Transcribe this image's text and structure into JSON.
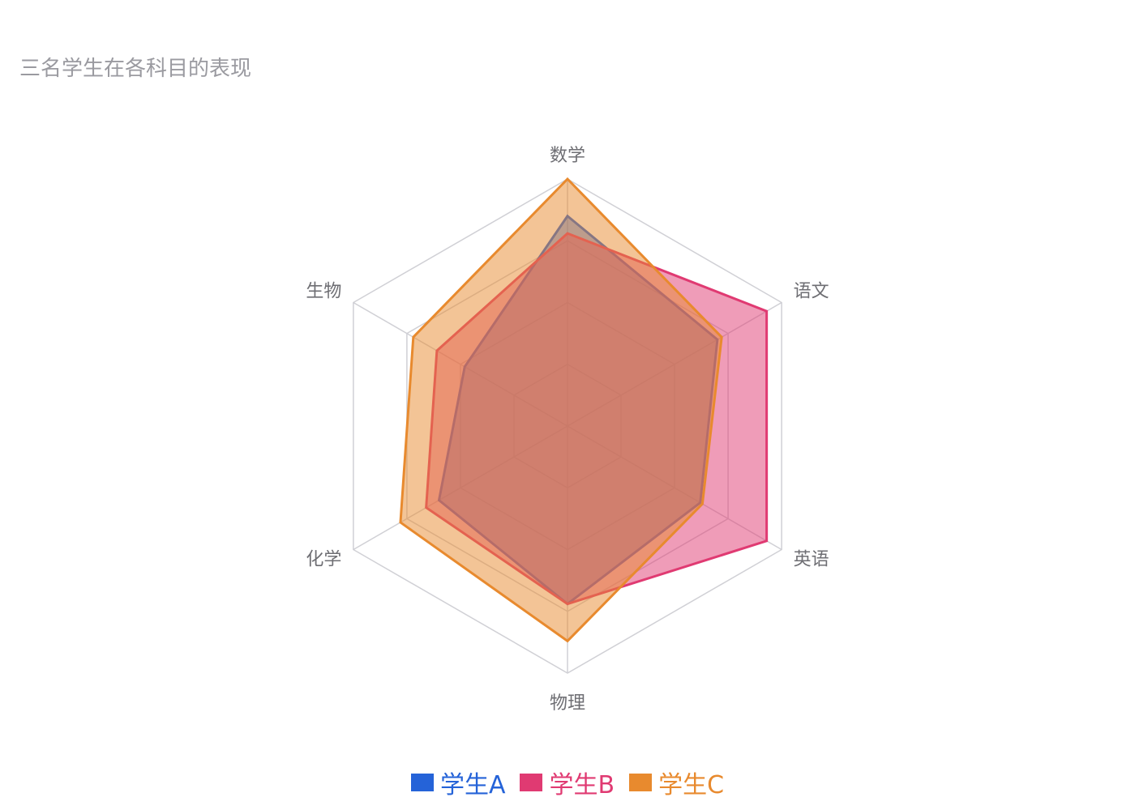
{
  "chart_data": {
    "type": "radar",
    "title": "三名学生在各科目的表现",
    "axes": [
      "数学",
      "语文",
      "英语",
      "物理",
      "化学",
      "生物"
    ],
    "rmax": 100,
    "grid_levels": [
      25,
      50,
      75,
      100
    ],
    "series": [
      {
        "name": "学生A",
        "values": [
          85,
          70,
          62,
          72,
          60,
          48
        ],
        "color": "#2563d8"
      },
      {
        "name": "学生B",
        "values": [
          78,
          93,
          93,
          72,
          66,
          61
        ],
        "color": "#e03a72"
      },
      {
        "name": "学生C",
        "values": [
          100,
          72,
          63,
          87,
          78,
          72
        ],
        "color": "#e88a2e"
      }
    ],
    "legend_position": "bottom-center"
  }
}
